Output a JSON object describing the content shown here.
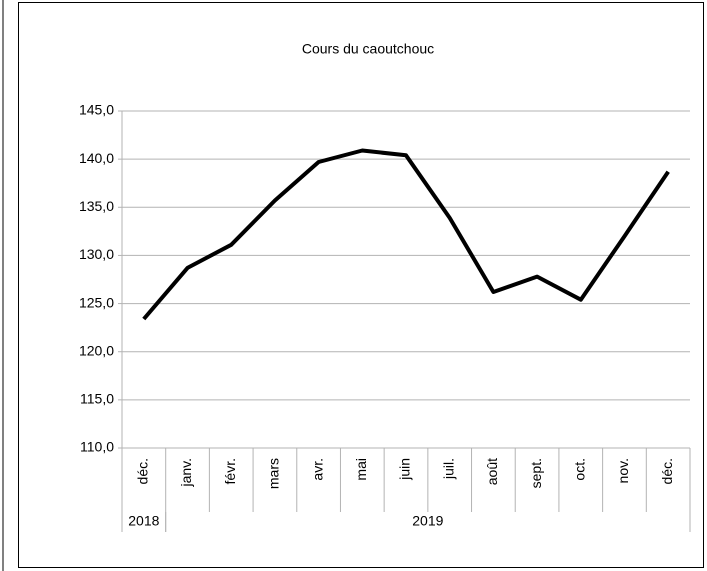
{
  "chart_data": {
    "type": "line",
    "title": "Cours du caoutchouc",
    "categories": [
      "déc.",
      "janv.",
      "févr.",
      "mars",
      "avr.",
      "mai",
      "juin",
      "juil.",
      "août",
      "sept.",
      "oct.",
      "nov.",
      "déc."
    ],
    "x_groups": [
      {
        "label": "2018",
        "count": 1
      },
      {
        "label": "2019",
        "count": 12
      }
    ],
    "series": [
      {
        "name": "Cours du caoutchouc",
        "color": "#000000",
        "values": [
          123.4,
          128.7,
          131.1,
          135.7,
          139.7,
          140.9,
          140.4,
          133.9,
          126.2,
          127.8,
          125.4,
          132.0,
          138.7
        ]
      }
    ],
    "ylim": [
      110,
      145
    ],
    "yticks": [
      {
        "value": 110,
        "label": "110,0"
      },
      {
        "value": 115,
        "label": "115,0"
      },
      {
        "value": 120,
        "label": "120,0"
      },
      {
        "value": 125,
        "label": "125,0"
      },
      {
        "value": 130,
        "label": "130,0"
      },
      {
        "value": 135,
        "label": "135,0"
      },
      {
        "value": 140,
        "label": "140,0"
      },
      {
        "value": 145,
        "label": "145,0"
      }
    ],
    "grid": true
  }
}
